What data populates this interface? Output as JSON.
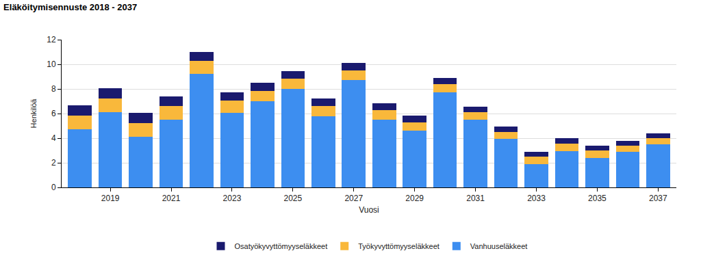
{
  "chart_data": {
    "type": "bar",
    "title": "Eläköitymisennuste 2018 - 2037",
    "x_label": "Vuosi",
    "y_label": "Henkilöä",
    "categories": [
      null,
      "2019",
      null,
      "2021",
      null,
      "2023",
      null,
      "2025",
      null,
      "2027",
      null,
      "2029",
      null,
      "2031",
      null,
      "2033",
      null,
      "2035",
      null,
      "2037"
    ],
    "series": [
      {
        "name": "Vanhuuseläkkeet",
        "color": "#3d8ef0",
        "values": [
          4.7,
          6.1,
          4.1,
          5.5,
          9.2,
          6.05,
          7.0,
          8.0,
          5.8,
          8.7,
          5.5,
          4.6,
          7.7,
          5.5,
          3.95,
          1.9,
          2.95,
          2.4,
          2.9,
          3.5
        ]
      },
      {
        "name": "Työkyvyttömyyseläkkeet",
        "color": "#f9b83b",
        "values": [
          1.15,
          1.1,
          1.1,
          1.1,
          1.1,
          1.0,
          0.85,
          0.85,
          0.8,
          0.8,
          0.8,
          0.7,
          0.7,
          0.6,
          0.55,
          0.6,
          0.6,
          0.6,
          0.5,
          0.5
        ]
      },
      {
        "name": "Osatyökyvyttömyyseläkkeet",
        "color": "#1a1a6e",
        "values": [
          0.8,
          0.85,
          0.85,
          0.8,
          0.7,
          0.65,
          0.65,
          0.6,
          0.6,
          0.6,
          0.55,
          0.55,
          0.5,
          0.45,
          0.45,
          0.4,
          0.45,
          0.4,
          0.4,
          0.4
        ]
      }
    ],
    "stacked": true,
    "ylim": [
      0,
      12
    ],
    "yticks": [
      0,
      2,
      4,
      6,
      8,
      10,
      12
    ],
    "grid": true,
    "legend": "bottom"
  }
}
